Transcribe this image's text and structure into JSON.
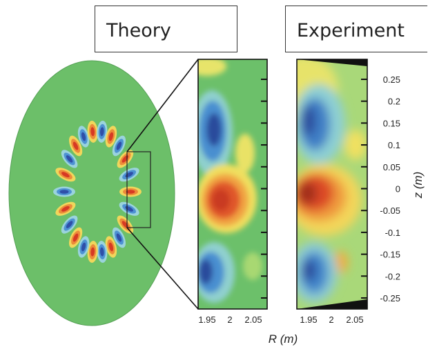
{
  "panels": {
    "theory_label": "Theory",
    "experiment_label": "Experiment"
  },
  "axes": {
    "z_label": "z (m)",
    "r_label": "R (m)",
    "z_ticks": [
      "0.25",
      "0.2",
      "0.15",
      "0.1",
      "0.05",
      "0",
      "-0.05",
      "-0.1",
      "-0.15",
      "-0.2",
      "-0.25"
    ],
    "r_ticks": [
      "1.95",
      "2",
      "2.05"
    ]
  },
  "colors": {
    "background_field": "#6dc06b",
    "positive": "#d63a24",
    "negative": "#2f4fa8"
  }
}
